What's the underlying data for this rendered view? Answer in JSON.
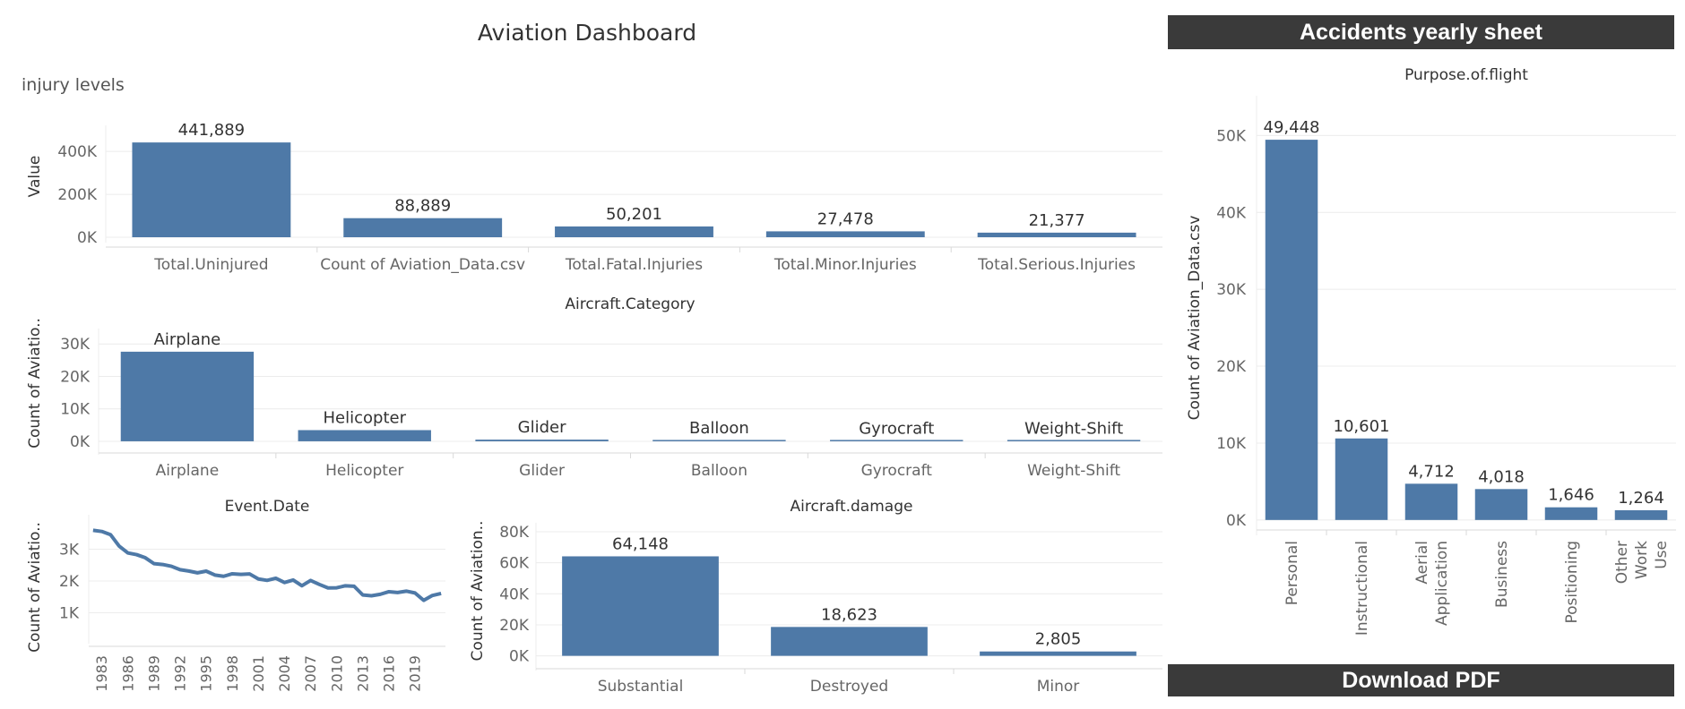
{
  "dashboard": {
    "title": "Aviation Dashboard",
    "injury_subtitle": "injury levels",
    "header_bar": "Accidents yearly sheet",
    "download_label": "Download PDF"
  },
  "colors": {
    "bar": "#4e79a7",
    "grid": "#ececec",
    "axis": "#d9d9d9",
    "dark_bar": "#3a3a3a"
  },
  "chart_data": [
    {
      "type": "bar",
      "title": "",
      "ylabel": "Value",
      "xlabel": "",
      "categories": [
        "Total.Uninjured",
        "Count of Aviation_Data.csv",
        "Total.Fatal.Injuries",
        "Total.Minor.Injuries",
        "Total.Serious.Injuries"
      ],
      "values": [
        441889,
        88889,
        50201,
        27478,
        21377
      ],
      "labels": [
        "441,889",
        "88,889",
        "50,201",
        "27,478",
        "21,377"
      ],
      "yticks": [
        0,
        200000,
        400000
      ],
      "ytick_labels": [
        "0K",
        "200K",
        "400K"
      ],
      "ylim": [
        0,
        480000
      ]
    },
    {
      "type": "bar",
      "title": "Aircraft.Category",
      "ylabel": "Count of Aviatio..",
      "xlabel": "",
      "categories": [
        "Airplane",
        "Helicopter",
        "Glider",
        "Balloon",
        "Gyrocraft",
        "Weight-Shift"
      ],
      "values": [
        27617,
        3440,
        508,
        231,
        173,
        161
      ],
      "labels": [
        "Airplane",
        "Helicopter",
        "Glider",
        "Balloon",
        "Gyrocraft",
        "Weight-Shift"
      ],
      "yticks": [
        0,
        10000,
        20000,
        30000
      ],
      "ytick_labels": [
        "0K",
        "10K",
        "20K",
        "30K"
      ],
      "ylim": [
        -2500,
        32000
      ]
    },
    {
      "type": "line",
      "title": "Event.Date",
      "ylabel": "Count of Aviatio..",
      "xlabel": "",
      "x": [
        1982,
        1983,
        1984,
        1985,
        1986,
        1987,
        1988,
        1989,
        1990,
        1991,
        1992,
        1993,
        1994,
        1995,
        1996,
        1997,
        1998,
        1999,
        2000,
        2001,
        2002,
        2003,
        2004,
        2005,
        2006,
        2007,
        2008,
        2009,
        2010,
        2011,
        2012,
        2013,
        2014,
        2015,
        2016,
        2017,
        2018,
        2019,
        2020,
        2021,
        2022
      ],
      "y": [
        3593,
        3556,
        3457,
        3096,
        2880,
        2828,
        2730,
        2544,
        2518,
        2462,
        2355,
        2313,
        2257,
        2309,
        2187,
        2148,
        2226,
        2209,
        2220,
        2063,
        2020,
        2085,
        1952,
        2031,
        1851,
        2016,
        1893,
        1783,
        1786,
        1850,
        1835,
        1561,
        1535,
        1582,
        1664,
        1638,
        1681,
        1624,
        1392,
        1545,
        1607
      ],
      "xticks": [
        1983,
        1986,
        1989,
        1992,
        1995,
        1998,
        2001,
        2004,
        2007,
        2010,
        2013,
        2016,
        2019
      ],
      "yticks": [
        1000,
        2000,
        3000
      ],
      "ytick_labels": [
        "1K",
        "2K",
        "3K"
      ],
      "ylim": [
        200,
        3800
      ],
      "xlim": [
        1981.5,
        2022.5
      ]
    },
    {
      "type": "bar",
      "title": "Aircraft.damage",
      "ylabel": "Count of Aviation..",
      "xlabel": "",
      "categories": [
        "Substantial",
        "Destroyed",
        "Minor"
      ],
      "values": [
        64148,
        18623,
        2805
      ],
      "labels": [
        "64,148",
        "18,623",
        "2,805"
      ],
      "yticks": [
        0,
        20000,
        40000,
        60000,
        80000
      ],
      "ytick_labels": [
        "0K",
        "20K",
        "40K",
        "60K",
        "80K"
      ],
      "ylim": [
        -6000,
        80000
      ]
    },
    {
      "type": "bar",
      "title": "Purpose.of.flight",
      "ylabel": "Count of Aviation_Data.csv",
      "xlabel": "",
      "categories": [
        "Personal",
        "Instructional",
        "Aerial Application",
        "Business",
        "Positioning",
        "Other Work Use"
      ],
      "values": [
        49448,
        10601,
        4712,
        4018,
        1646,
        1264
      ],
      "labels": [
        "49,448",
        "10,601",
        "4,712",
        "4,018",
        "1,646",
        "1,264"
      ],
      "yticks": [
        0,
        10000,
        20000,
        30000,
        40000,
        50000
      ],
      "ytick_labels": [
        "0K",
        "10K",
        "20K",
        "30K",
        "40K",
        "50K"
      ],
      "ylim": [
        -1300,
        54000
      ]
    }
  ]
}
